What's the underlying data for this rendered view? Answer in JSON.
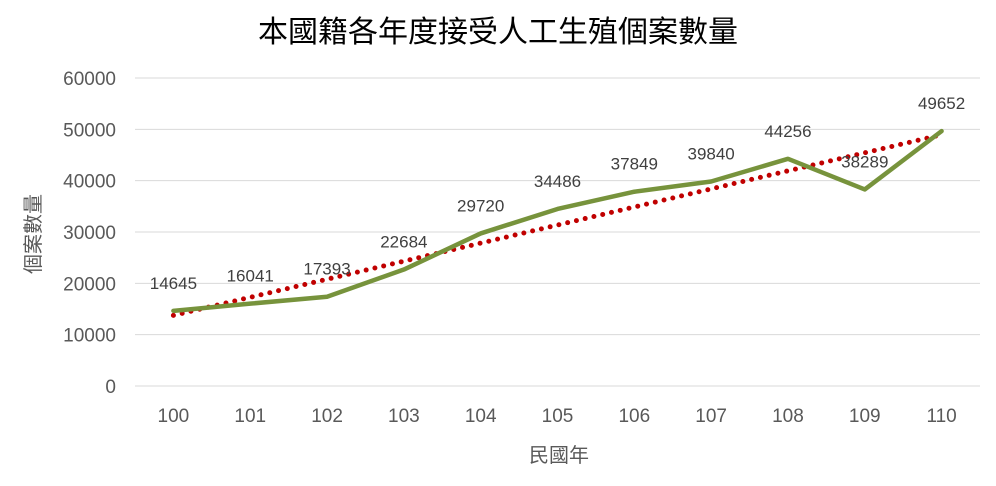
{
  "chart_data": {
    "type": "line",
    "title": "本國籍各年度接受人工生殖個案數量",
    "xlabel": "民國年",
    "ylabel": "個案數量",
    "categories": [
      "100",
      "101",
      "102",
      "103",
      "104",
      "105",
      "106",
      "107",
      "108",
      "109",
      "110"
    ],
    "series": [
      {
        "values": [
          14645,
          16041,
          17393,
          22684,
          29720,
          34486,
          37849,
          39840,
          44256,
          38289,
          49652
        ],
        "color": "#77933c",
        "data_labels": true
      }
    ],
    "trendline": {
      "type": "linear",
      "style": "dotted",
      "color": "#c00000"
    },
    "ylim": [
      0,
      60000
    ],
    "yticks": [
      0,
      10000,
      20000,
      30000,
      40000,
      50000,
      60000
    ],
    "grid": true,
    "legend": "none"
  }
}
